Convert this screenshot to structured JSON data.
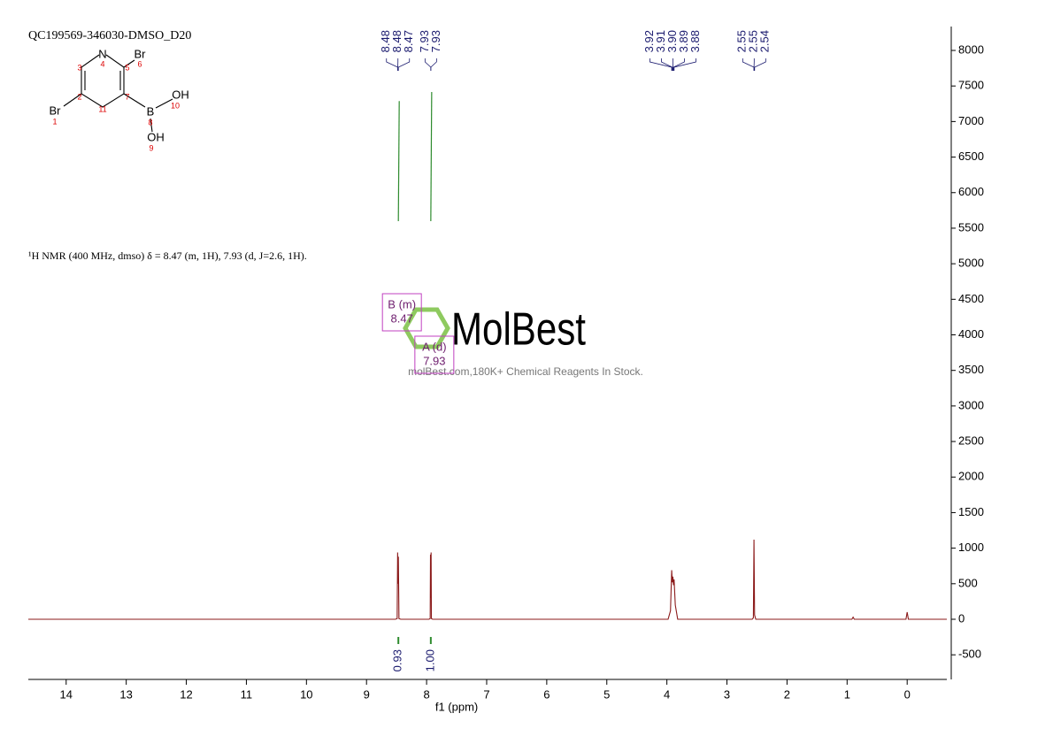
{
  "chart_data": {
    "type": "line",
    "title": "QC199569-346030-DMSO_D20",
    "annotation": "¹H NMR (400 MHz, dmso) δ = 8.47 (m, 1H), 7.93 (d, J=2.6, 1H).",
    "x_label": "f1 (ppm)",
    "xlim": [
      14.63,
      -0.66
    ],
    "xticks": [
      14,
      13,
      12,
      11,
      10,
      9,
      8,
      7,
      6,
      5,
      4,
      3,
      2,
      1,
      0
    ],
    "ylim": [
      -846,
      8336
    ],
    "yticks": [
      -500,
      0,
      500,
      1000,
      1500,
      2000,
      2500,
      3000,
      3500,
      4000,
      4500,
      5000,
      5500,
      6000,
      6500,
      7000,
      7500,
      8000
    ],
    "series": [
      {
        "color": "#8b1a1a",
        "x": [
          14.63,
          8.52,
          8.49,
          8.482,
          8.476,
          8.47,
          8.46,
          8.43,
          7.96,
          7.94,
          7.935,
          7.93,
          7.925,
          7.92,
          7.9,
          3.98,
          3.94,
          3.92,
          3.91,
          3.9,
          3.89,
          3.88,
          3.86,
          3.82,
          2.58,
          2.56,
          2.55,
          2.54,
          2.52,
          0.92,
          0.9,
          0.88,
          0.02,
          0.0,
          -0.02,
          -0.66
        ],
        "y": [
          0,
          0,
          10,
          940,
          500,
          880,
          10,
          0,
          0,
          10,
          910,
          300,
          940,
          10,
          0,
          0,
          120,
          690,
          520,
          600,
          480,
          560,
          200,
          0,
          0,
          20,
          1120,
          60,
          0,
          0,
          30,
          0,
          0,
          100,
          0,
          0
        ]
      }
    ],
    "peaks": [
      8.48,
      8.48,
      8.47,
      7.93,
      7.93,
      3.92,
      3.91,
      {
        "value": 3.9,
        "label": "3.90"
      },
      3.89,
      3.88,
      2.55,
      2.55,
      2.54
    ],
    "integrals": {
      "x": [
        8.47,
        7.93
      ],
      "values": [
        0.93,
        1.0
      ],
      "value_labels": [
        "0.93",
        "1.00"
      ],
      "color": "#2e8b2e"
    },
    "multiplets": [
      {
        "name": "B (m)",
        "shift": 8.47
      },
      {
        "name": "A (d)",
        "shift": 7.93
      }
    ]
  },
  "structure": {
    "atoms": [
      {
        "symbol": "N",
        "number": 4
      },
      {
        "symbol": "Br",
        "number": 6
      },
      {
        "number": 3
      },
      {
        "number": 5
      },
      {
        "number": 2
      },
      {
        "number": 7
      },
      {
        "symbol": "Br",
        "number": 1
      },
      {
        "number": 11
      },
      {
        "symbol": "B",
        "number": 8
      },
      {
        "symbol": "OH",
        "number": 10
      },
      {
        "symbol": "OH",
        "number": 9
      }
    ]
  },
  "watermark": {
    "logo": "MolBest",
    "text": "molBest.com,180K+ Chemical Reagents In Stock."
  }
}
